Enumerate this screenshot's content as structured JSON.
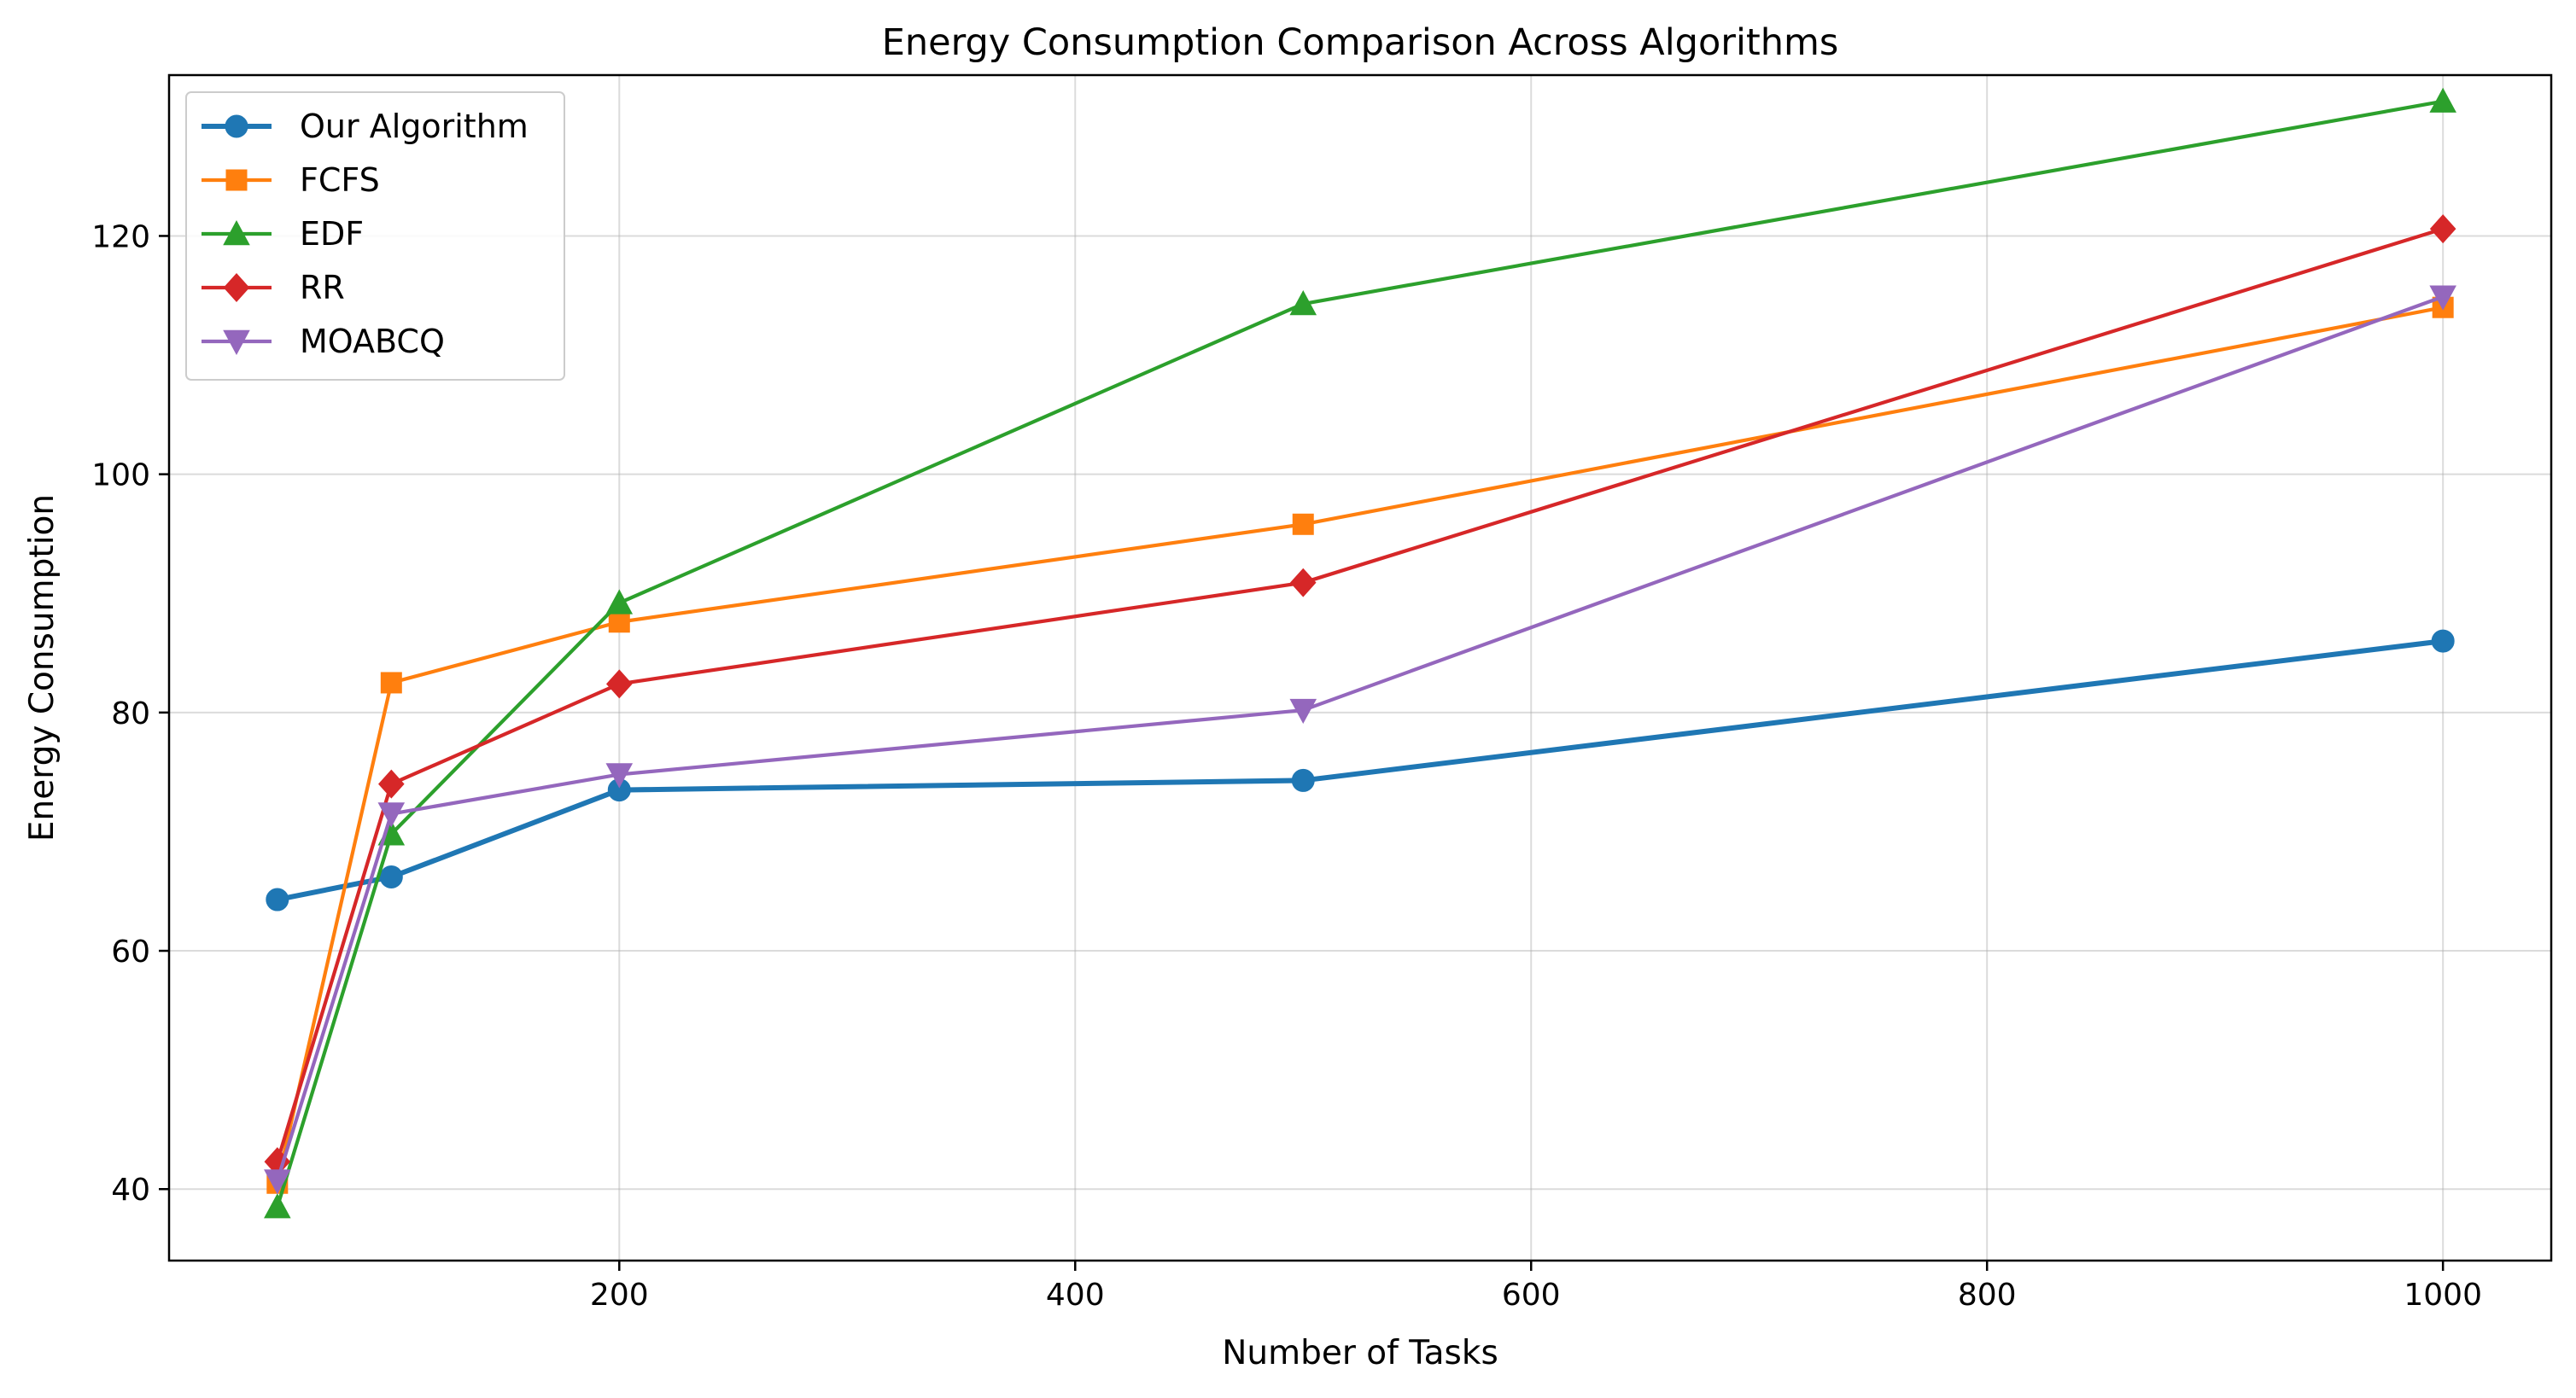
{
  "chart_data": {
    "type": "line",
    "title": "Energy Consumption Comparison Across Algorithms",
    "xlabel": "Number of Tasks",
    "ylabel": "Energy Consumption",
    "x": [
      50,
      100,
      200,
      500,
      1000
    ],
    "xlim": [
      2.5,
      1047.5
    ],
    "ylim": [
      34,
      133.5
    ],
    "xticks": [
      200,
      400,
      600,
      800,
      1000
    ],
    "yticks": [
      40,
      60,
      80,
      100,
      120
    ],
    "grid": true,
    "legend_position": "top-left",
    "series": [
      {
        "name": "Our Algorithm",
        "color": "#1f77b4",
        "marker": "circle",
        "line_width": "thick",
        "values": [
          64.3,
          66.2,
          73.5,
          74.3,
          86.0
        ]
      },
      {
        "name": "FCFS",
        "color": "#ff7f0e",
        "marker": "square",
        "line_width": "normal",
        "values": [
          40.5,
          82.5,
          87.6,
          95.8,
          114.0
        ]
      },
      {
        "name": "EDF",
        "color": "#2ca02c",
        "marker": "triangle-up",
        "line_width": "normal",
        "values": [
          38.5,
          69.8,
          89.2,
          114.3,
          131.3
        ]
      },
      {
        "name": "RR",
        "color": "#d62728",
        "marker": "diamond",
        "line_width": "normal",
        "values": [
          42.3,
          74.0,
          82.4,
          90.9,
          120.6
        ]
      },
      {
        "name": "MOABCQ",
        "color": "#9467bd",
        "marker": "triangle-down",
        "line_width": "normal",
        "values": [
          40.7,
          71.5,
          74.8,
          80.2,
          114.9
        ]
      }
    ]
  }
}
